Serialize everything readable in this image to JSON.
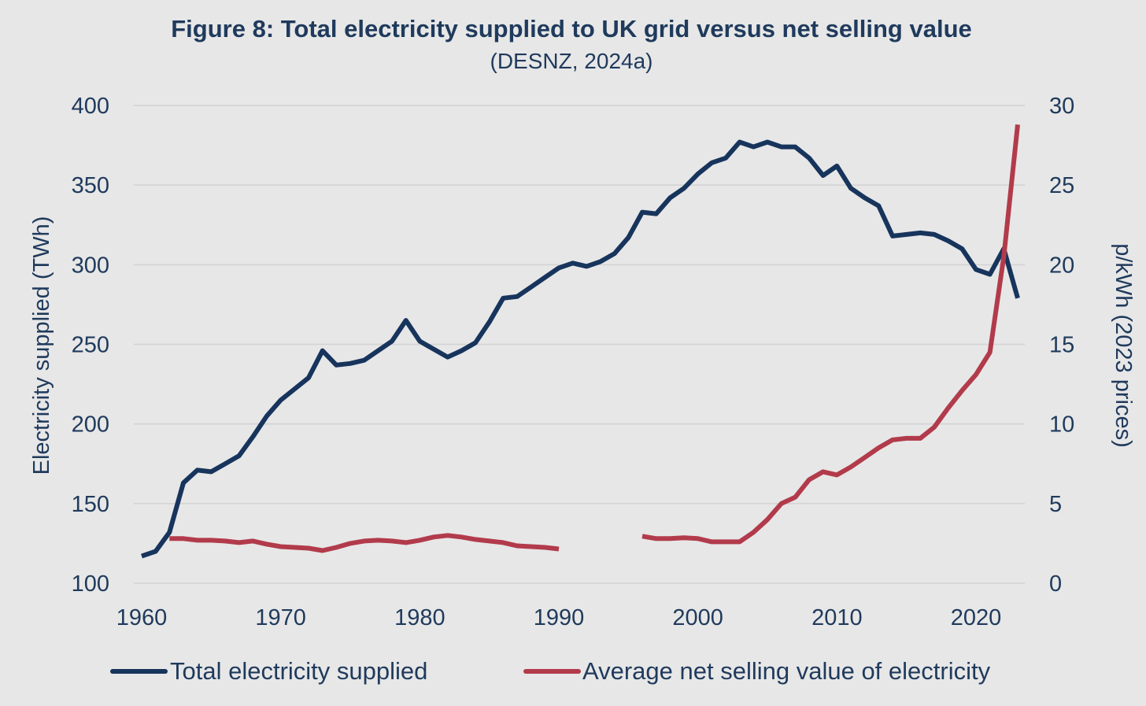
{
  "chart_data": {
    "type": "line",
    "title": "Figure 8: Total electricity supplied to UK grid versus net selling value",
    "subtitle": "(DESNZ, 2024a)",
    "xlabel": "",
    "ylabel": "Electricity supplied (TWh)",
    "y2label": "p/kWh (2023 prices)",
    "xlim": [
      1960,
      2023
    ],
    "ylim": [
      100,
      400
    ],
    "y2lim": [
      0,
      30
    ],
    "x_ticks": [
      "1960",
      "1970",
      "1980",
      "1990",
      "2000",
      "2010",
      "2020"
    ],
    "y_ticks": [
      "400",
      "350",
      "300",
      "250",
      "200",
      "150",
      "100"
    ],
    "y2_ticks": [
      "30",
      "25",
      "20",
      "15",
      "10",
      "5",
      "0"
    ],
    "grid": true,
    "legend_position": "bottom",
    "series": [
      {
        "name": "Total electricity supplied",
        "axis": "left",
        "color": "#17345c",
        "x": [
          1960,
          1961,
          1962,
          1963,
          1964,
          1965,
          1966,
          1967,
          1968,
          1969,
          1970,
          1971,
          1972,
          1973,
          1974,
          1975,
          1976,
          1977,
          1978,
          1979,
          1980,
          1981,
          1982,
          1983,
          1984,
          1985,
          1986,
          1987,
          1988,
          1989,
          1990,
          1991,
          1992,
          1993,
          1994,
          1995,
          1996,
          1997,
          1998,
          1999,
          2000,
          2001,
          2002,
          2003,
          2004,
          2005,
          2006,
          2007,
          2008,
          2009,
          2010,
          2011,
          2012,
          2013,
          2014,
          2015,
          2016,
          2017,
          2018,
          2019,
          2020,
          2021,
          2022,
          2023
        ],
        "values": [
          117,
          120,
          132,
          163,
          171,
          170,
          175,
          180,
          192,
          205,
          215,
          222,
          229,
          246,
          237,
          238,
          240,
          246,
          252,
          265,
          252,
          247,
          242,
          246,
          251,
          264,
          279,
          280,
          286,
          292,
          298,
          301,
          299,
          302,
          307,
          317,
          333,
          332,
          342,
          348,
          357,
          364,
          367,
          377,
          374,
          377,
          374,
          374,
          367,
          356,
          362,
          348,
          342,
          337,
          318,
          319,
          320,
          319,
          315,
          310,
          297,
          294,
          310,
          279
        ]
      },
      {
        "name": "Average net selling value of electricity",
        "axis": "right",
        "color": "#b23b4b",
        "x": [
          1962,
          1963,
          1964,
          1965,
          1966,
          1967,
          1968,
          1969,
          1970,
          1971,
          1972,
          1973,
          1974,
          1975,
          1976,
          1977,
          1978,
          1979,
          1980,
          1981,
          1982,
          1983,
          1984,
          1985,
          1986,
          1987,
          1988,
          1989,
          1990,
          null,
          1996,
          1997,
          1998,
          1999,
          2000,
          2001,
          2002,
          2003,
          2004,
          2005,
          2006,
          2007,
          2008,
          2009,
          2010,
          2011,
          2012,
          2013,
          2014,
          2015,
          2016,
          2017,
          2018,
          2019,
          2020,
          2021,
          2022,
          2023
        ],
        "values": [
          2.8,
          2.8,
          2.7,
          2.7,
          2.65,
          2.55,
          2.65,
          2.45,
          2.3,
          2.25,
          2.2,
          2.05,
          2.25,
          2.5,
          2.65,
          2.7,
          2.65,
          2.55,
          2.7,
          2.9,
          3.0,
          2.9,
          2.75,
          2.65,
          2.55,
          2.35,
          2.3,
          2.25,
          2.15,
          null,
          2.95,
          2.8,
          2.8,
          2.85,
          2.8,
          2.6,
          2.6,
          2.6,
          3.2,
          4.0,
          5.0,
          5.4,
          6.5,
          7.0,
          6.8,
          7.3,
          7.9,
          8.5,
          9.0,
          9.1,
          9.1,
          9.8,
          11.0,
          12.1,
          13.1,
          14.5,
          20.5,
          28.8
        ]
      }
    ]
  }
}
